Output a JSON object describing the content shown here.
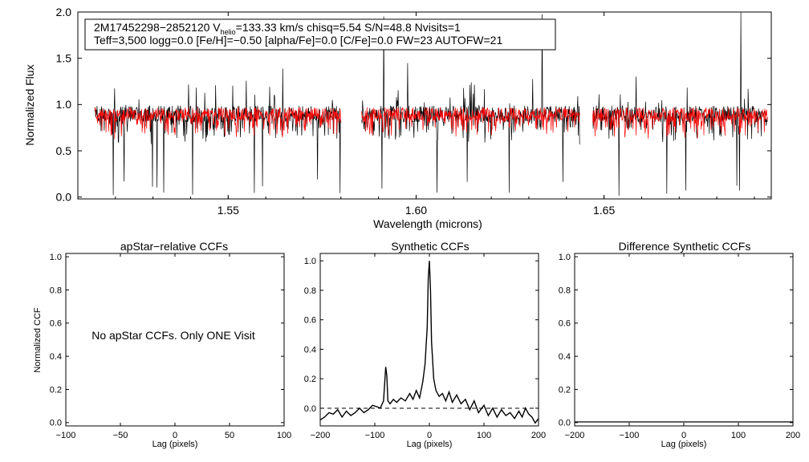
{
  "chart_data": [
    {
      "type": "line",
      "panel": "spectrum",
      "title": "",
      "annotation_line1_parts": [
        "2M17452298−2852120  V",
        "helio",
        "=133.33 km/s  chisq=5.54  S/N=48.8  Nvisits=1"
      ],
      "annotation_line2": "Teff=3,500 logg=0.0 [Fe/H]=−0.50 [alpha/Fe]=0.0 [C/Fe]=0.0 FW=23 AUTOFW=21",
      "xlabel": "Wavelength (microns)",
      "ylabel": "Normalized Flux",
      "xlim": [
        1.51,
        1.6945
      ],
      "ylim": [
        -0.02,
        2.0
      ],
      "xticks": [
        1.55,
        1.6,
        1.65
      ],
      "xtick_labels": [
        "1.55",
        "1.60",
        "1.65"
      ],
      "yticks": [
        0.0,
        0.5,
        1.0,
        1.5,
        2.0
      ],
      "ytick_labels": [
        "0.0",
        "0.5",
        "1.0",
        "1.5",
        "2.0"
      ],
      "series": [
        {
          "name": "observed",
          "color": "#000000"
        },
        {
          "name": "model",
          "color": "#ff0000"
        }
      ],
      "detector_ranges": [
        [
          1.5145,
          1.58
        ],
        [
          1.5855,
          1.6435
        ],
        [
          1.647,
          1.6935
        ]
      ],
      "baseline_flux": 0.9
    },
    {
      "type": "line",
      "panel": "apstar-ccf",
      "title": "apStar−relative CCFs",
      "xlabel": "Lag (pixels)",
      "ylabel": "Normalized CCF",
      "xlim": [
        -100,
        100
      ],
      "ylim": [
        -0.02,
        1.02
      ],
      "xticks": [
        -100,
        -50,
        0,
        50,
        100
      ],
      "xtick_labels": [
        "−100",
        "−50",
        "0",
        "50",
        "100"
      ],
      "yticks": [
        0.0,
        0.2,
        0.4,
        0.6,
        0.8,
        1.0
      ],
      "ytick_labels": [
        "0.0",
        "0.2",
        "0.4",
        "0.6",
        "0.8",
        "1.0"
      ],
      "message": "No apStar CCFs.  Only ONE Visit",
      "series": []
    },
    {
      "type": "line",
      "panel": "synthetic-ccf",
      "title": "Synthetic CCFs",
      "xlabel": "Lag (pixels)",
      "ylabel": "",
      "xlim": [
        -200,
        200
      ],
      "ylim": [
        -0.12,
        1.05
      ],
      "xticks": [
        -200,
        -100,
        0,
        100,
        200
      ],
      "xtick_labels": [
        "−200",
        "−100",
        "0",
        "100",
        "200"
      ],
      "yticks": [
        0.0,
        0.2,
        0.4,
        0.6,
        0.8,
        1.0
      ],
      "ytick_labels": [
        "0.0",
        "0.2",
        "0.4",
        "0.6",
        "0.8",
        "1.0"
      ],
      "zero_line": 0.0,
      "series": [
        {
          "name": "ccf",
          "x": [
            -200,
            -192,
            -184,
            -176,
            -168,
            -160,
            -152,
            -144,
            -136,
            -128,
            -120,
            -112,
            -104,
            -96,
            -90,
            -84,
            -80,
            -78,
            -76,
            -72,
            -66,
            -60,
            -52,
            -44,
            -36,
            -30,
            -24,
            -18,
            -12,
            -8,
            -4,
            -2,
            0,
            2,
            4,
            8,
            12,
            18,
            24,
            30,
            36,
            42,
            50,
            58,
            66,
            74,
            82,
            90,
            100,
            108,
            116,
            124,
            132,
            140,
            148,
            156,
            164,
            170,
            176,
            182,
            188,
            194,
            200
          ],
          "y": [
            -0.08,
            -0.06,
            -0.03,
            -0.04,
            -0.01,
            -0.06,
            -0.02,
            -0.05,
            -0.03,
            0.0,
            -0.03,
            -0.01,
            0.02,
            0.01,
            0.0,
            0.05,
            0.28,
            0.22,
            0.05,
            0.03,
            0.06,
            0.04,
            0.07,
            0.05,
            0.1,
            0.06,
            0.12,
            0.07,
            0.18,
            0.3,
            0.55,
            0.88,
            1.0,
            0.8,
            0.45,
            0.2,
            0.12,
            0.08,
            0.1,
            0.05,
            0.11,
            0.04,
            0.09,
            0.03,
            0.06,
            -0.01,
            0.05,
            -0.03,
            0.02,
            -0.05,
            0.0,
            -0.06,
            -0.01,
            -0.05,
            -0.03,
            -0.07,
            -0.02,
            -0.06,
            0.0,
            -0.04,
            -0.06,
            -0.1,
            -0.07
          ]
        }
      ]
    },
    {
      "type": "line",
      "panel": "difference-ccf",
      "title": "Difference Synthetic CCFs",
      "xlabel": "Lag (pixels)",
      "ylabel": "",
      "xlim": [
        -200,
        200
      ],
      "ylim": [
        -0.02,
        1.02
      ],
      "xticks": [
        -200,
        -100,
        0,
        100,
        200
      ],
      "xtick_labels": [
        "−200",
        "−100",
        "0",
        "100",
        "200"
      ],
      "yticks": [
        0.0,
        0.2,
        0.4,
        0.6,
        0.8,
        1.0
      ],
      "ytick_labels": [
        "0.0",
        "0.2",
        "0.4",
        "0.6",
        "0.8",
        "1.0"
      ],
      "series": []
    }
  ]
}
